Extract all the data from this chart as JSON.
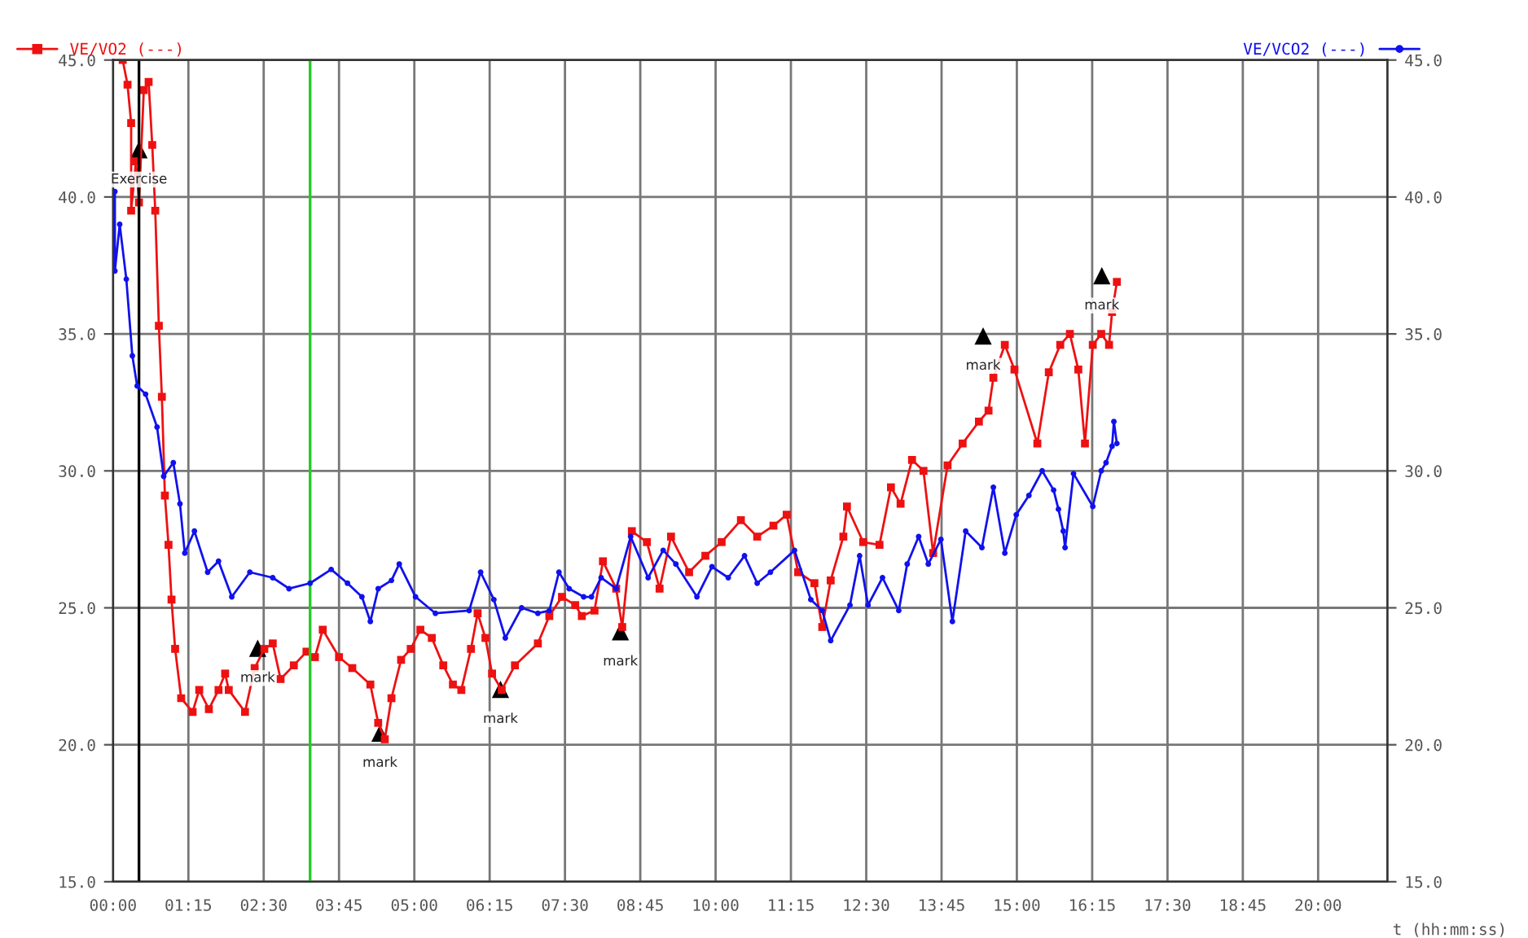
{
  "chart_data": {
    "type": "line",
    "xlabel": "t (hh:mm:ss)",
    "xlim": [
      0,
      21.15
    ],
    "xticks": [
      {
        "value": 0,
        "label": "00:00"
      },
      {
        "value": 1.25,
        "label": "01:15"
      },
      {
        "value": 2.5,
        "label": "02:30"
      },
      {
        "value": 3.75,
        "label": "03:45"
      },
      {
        "value": 5,
        "label": "05:00"
      },
      {
        "value": 6.25,
        "label": "06:15"
      },
      {
        "value": 7.5,
        "label": "07:30"
      },
      {
        "value": 8.75,
        "label": "08:45"
      },
      {
        "value": 10,
        "label": "10:00"
      },
      {
        "value": 11.25,
        "label": "11:15"
      },
      {
        "value": 12.5,
        "label": "12:30"
      },
      {
        "value": 13.75,
        "label": "13:45"
      },
      {
        "value": 15,
        "label": "15:00"
      },
      {
        "value": 16.25,
        "label": "16:15"
      },
      {
        "value": 17.5,
        "label": "17:30"
      },
      {
        "value": 18.75,
        "label": "18:45"
      },
      {
        "value": 20,
        "label": "20:00"
      }
    ],
    "ylim": [
      15,
      45
    ],
    "yticks": [
      {
        "value": 15,
        "label": "15.0"
      },
      {
        "value": 20,
        "label": "20.0"
      },
      {
        "value": 25,
        "label": "25.0"
      },
      {
        "value": 30,
        "label": "30.0"
      },
      {
        "value": 35,
        "label": "35.0"
      },
      {
        "value": 40,
        "label": "40.0"
      },
      {
        "value": 45,
        "label": "45.0"
      }
    ],
    "y2lim": [
      15,
      45
    ],
    "y2ticks": [
      {
        "value": 15,
        "label": "15.0"
      },
      {
        "value": 20,
        "label": "20.0"
      },
      {
        "value": 25,
        "label": "25.0"
      },
      {
        "value": 30,
        "label": "30.0"
      },
      {
        "value": 35,
        "label": "35.0"
      },
      {
        "value": 40,
        "label": "40.0"
      },
      {
        "value": 45,
        "label": "45.0"
      }
    ],
    "grid": true,
    "legend": "top",
    "series": [
      {
        "name": "VE/VO2 (---)",
        "color": "#ee1111",
        "marker": "square",
        "x": [
          0.16,
          0.24,
          0.3,
          0.3,
          0.38,
          0.43,
          0.51,
          0.59,
          0.65,
          0.7,
          0.76,
          0.81,
          0.86,
          0.92,
          0.97,
          1.03,
          1.13,
          1.32,
          1.43,
          1.59,
          1.75,
          1.86,
          1.92,
          2.19,
          2.35,
          2.51,
          2.65,
          2.78,
          3.0,
          3.21,
          3.35,
          3.48,
          3.75,
          3.97,
          4.27,
          4.4,
          4.51,
          4.62,
          4.78,
          4.94,
          5.1,
          5.29,
          5.48,
          5.64,
          5.78,
          5.94,
          6.05,
          6.18,
          6.29,
          6.45,
          6.67,
          7.05,
          7.24,
          7.45,
          7.67,
          7.78,
          7.99,
          8.13,
          8.35,
          8.45,
          8.61,
          8.86,
          9.07,
          9.26,
          9.56,
          9.83,
          10.1,
          10.42,
          10.69,
          10.96,
          11.18,
          11.37,
          11.64,
          11.77,
          11.91,
          12.12,
          12.18,
          12.45,
          12.72,
          12.91,
          13.07,
          13.26,
          13.45,
          13.61,
          13.85,
          14.1,
          14.37,
          14.53,
          14.61,
          14.8,
          14.96,
          15.34,
          15.53,
          15.72,
          15.88,
          16.02,
          16.13,
          16.26,
          16.4,
          16.53,
          16.58,
          16.66
        ],
        "values": [
          45.0,
          44.1,
          42.7,
          39.5,
          41.3,
          39.8,
          43.9,
          44.2,
          41.9,
          39.5,
          35.3,
          32.7,
          29.1,
          27.3,
          25.3,
          23.5,
          21.7,
          21.2,
          22.0,
          21.3,
          22.0,
          22.6,
          22.0,
          21.2,
          22.8,
          23.5,
          23.7,
          22.4,
          22.9,
          23.4,
          23.2,
          24.2,
          23.2,
          22.8,
          22.2,
          20.8,
          20.2,
          21.7,
          23.1,
          23.5,
          24.2,
          23.9,
          22.9,
          22.2,
          22.0,
          23.5,
          24.8,
          23.9,
          22.6,
          22.0,
          22.9,
          23.7,
          24.7,
          25.4,
          25.1,
          24.7,
          24.9,
          26.7,
          25.7,
          24.3,
          27.8,
          27.4,
          25.7,
          27.6,
          26.3,
          26.9,
          27.4,
          28.2,
          27.6,
          28.0,
          28.4,
          26.3,
          25.9,
          24.3,
          26.0,
          27.6,
          28.7,
          27.4,
          27.3,
          29.4,
          28.8,
          30.4,
          30.0,
          27.0,
          30.2,
          31.0,
          31.8,
          32.2,
          33.4,
          34.6,
          33.7,
          31.0,
          33.6,
          34.6,
          35.0,
          33.7,
          31.0,
          34.6,
          35.0,
          34.6,
          35.8,
          36.9
        ]
      },
      {
        "name": "VE/VCO2 (---)",
        "color": "#1111ee",
        "marker": "circle",
        "axis": "y2",
        "x": [
          0.03,
          0.03,
          0.11,
          0.22,
          0.32,
          0.4,
          0.54,
          0.73,
          0.84,
          1.0,
          1.11,
          1.19,
          1.35,
          1.57,
          1.75,
          1.97,
          2.27,
          2.65,
          2.92,
          3.27,
          3.62,
          3.89,
          4.13,
          4.27,
          4.4,
          4.62,
          4.75,
          5.02,
          5.35,
          5.91,
          6.1,
          6.32,
          6.51,
          6.78,
          7.05,
          7.24,
          7.4,
          7.57,
          7.81,
          7.94,
          8.1,
          8.35,
          8.59,
          8.88,
          9.13,
          9.34,
          9.69,
          9.94,
          10.21,
          10.48,
          10.69,
          10.91,
          11.31,
          11.58,
          11.77,
          11.91,
          12.23,
          12.39,
          12.53,
          12.77,
          13.04,
          13.18,
          13.37,
          13.53,
          13.74,
          13.93,
          14.15,
          14.42,
          14.61,
          14.8,
          14.99,
          15.2,
          15.42,
          15.61,
          15.69,
          15.77,
          15.8,
          15.94,
          16.26,
          16.4,
          16.48,
          16.58,
          16.61,
          16.66
        ],
        "values": [
          40.2,
          37.3,
          39.0,
          37.0,
          34.2,
          33.1,
          32.8,
          31.6,
          29.8,
          30.3,
          28.8,
          27.0,
          27.8,
          26.3,
          26.7,
          25.4,
          26.3,
          26.1,
          25.7,
          25.9,
          26.4,
          25.9,
          25.4,
          24.5,
          25.7,
          26.0,
          26.6,
          25.4,
          24.8,
          24.9,
          26.3,
          25.3,
          23.9,
          25.0,
          24.8,
          24.9,
          26.3,
          25.7,
          25.4,
          25.4,
          26.1,
          25.7,
          27.6,
          26.1,
          27.1,
          26.6,
          25.4,
          26.5,
          26.1,
          26.9,
          25.9,
          26.3,
          27.1,
          25.3,
          24.9,
          23.8,
          25.1,
          26.9,
          25.1,
          26.1,
          24.9,
          26.6,
          27.6,
          26.6,
          27.5,
          24.5,
          27.8,
          27.2,
          29.4,
          27.0,
          28.4,
          29.1,
          30.0,
          29.3,
          28.6,
          27.8,
          27.2,
          29.9,
          28.7,
          30.0,
          30.3,
          30.9,
          31.8,
          31.0
        ]
      }
    ],
    "ref_lines": [
      {
        "axis": "x",
        "value": 0.43,
        "color": "#000000"
      },
      {
        "axis": "x",
        "value": 3.27,
        "color": "#22cc22"
      }
    ],
    "annotations": [
      {
        "text": "Exercise",
        "x": 0.43,
        "y": 41.7
      },
      {
        "text": "mark",
        "x": 2.4,
        "y": 23.5
      },
      {
        "text": "mark",
        "x": 4.43,
        "y": 20.4
      },
      {
        "text": "mark",
        "x": 6.43,
        "y": 22.0
      },
      {
        "text": "mark",
        "x": 8.42,
        "y": 24.1
      },
      {
        "text": "mark",
        "x": 14.44,
        "y": 34.9
      },
      {
        "text": "mark",
        "x": 16.41,
        "y": 37.1
      }
    ]
  }
}
